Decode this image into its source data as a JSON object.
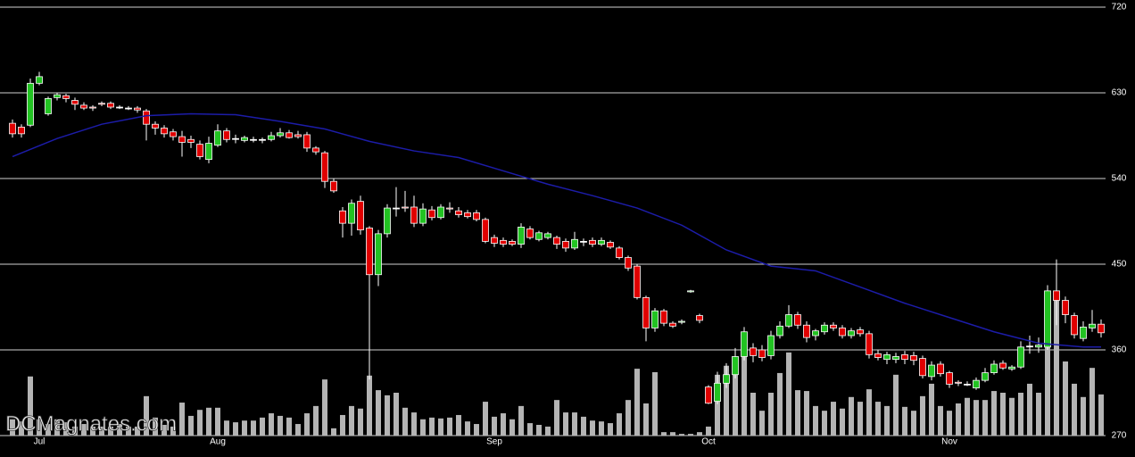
{
  "chart_data": {
    "type": "candlestick",
    "annotation": "DCMagnates.com",
    "categories": [
      null,
      null,
      null,
      "Jul",
      null,
      null,
      null,
      null,
      null,
      null,
      null,
      null,
      null,
      null,
      null,
      null,
      null,
      null,
      null,
      null,
      null,
      null,
      null,
      "Aug",
      null,
      null,
      null,
      null,
      null,
      null,
      null,
      null,
      null,
      null,
      null,
      null,
      null,
      null,
      null,
      null,
      null,
      null,
      null,
      null,
      null,
      null,
      null,
      null,
      null,
      null,
      null,
      null,
      null,
      null,
      "Sep",
      null,
      null,
      null,
      null,
      null,
      null,
      null,
      null,
      null,
      null,
      null,
      null,
      null,
      null,
      null,
      null,
      null,
      null,
      null,
      null,
      null,
      null,
      null,
      "Oct",
      null,
      null,
      null,
      null,
      null,
      null,
      null,
      null,
      null,
      null,
      null,
      null,
      null,
      null,
      null,
      null,
      null,
      null,
      null,
      null,
      null,
      null,
      null,
      null,
      null,
      null,
      "Nov",
      null,
      null,
      null,
      null,
      null,
      null,
      null,
      null,
      null,
      null,
      null,
      null,
      null,
      null,
      null,
      null,
      null
    ],
    "open": [
      598,
      594,
      596,
      640,
      608,
      625,
      627,
      622,
      617,
      615,
      619,
      619,
      615,
      614,
      614,
      611,
      597,
      593,
      589,
      584,
      581,
      576,
      560,
      575,
      590,
      582,
      580,
      581,
      581,
      581,
      585,
      588,
      586,
      586,
      572,
      567,
      537,
      506,
      493,
      516,
      488,
      439,
      482,
      509,
      510,
      510,
      493,
      507,
      499,
      509,
      506,
      504,
      504,
      497,
      478,
      475,
      474,
      471,
      487,
      476,
      478,
      478,
      474,
      467,
      474,
      475,
      471,
      473,
      467,
      457,
      448,
      415,
      383,
      401,
      388,
      389,
      421,
      396,
      321,
      306,
      325,
      334,
      353,
      362,
      360,
      354,
      375,
      385,
      397,
      386,
      375,
      379,
      386,
      383,
      375,
      381,
      377,
      356,
      350,
      350,
      355,
      354,
      351,
      332,
      345,
      336,
      326,
      324,
      320,
      328,
      336,
      346,
      340,
      342,
      364,
      363,
      363,
      422,
      412,
      396,
      372,
      383,
      387
    ],
    "high": [
      602,
      597,
      645,
      652,
      626,
      630,
      629,
      625,
      620,
      617,
      621,
      621,
      617,
      616,
      616,
      613,
      600,
      596,
      592,
      590,
      585,
      580,
      584,
      597,
      593,
      586,
      585,
      584,
      583,
      589,
      593,
      591,
      590,
      589,
      574,
      569,
      540,
      510,
      518,
      522,
      490,
      486,
      513,
      531,
      527,
      522,
      514,
      511,
      513,
      515,
      510,
      507,
      507,
      499,
      481,
      478,
      476,
      493,
      490,
      485,
      484,
      480,
      477,
      484,
      477,
      478,
      478,
      475,
      469,
      459,
      450,
      417,
      404,
      403,
      390,
      392,
      423,
      398,
      323,
      337,
      346,
      362,
      384,
      367,
      365,
      380,
      390,
      407,
      400,
      390,
      382,
      389,
      389,
      386,
      383,
      384,
      380,
      360,
      358,
      357,
      359,
      358,
      354,
      348,
      348,
      338,
      328,
      327,
      331,
      341,
      349,
      349,
      344,
      369,
      375,
      373,
      428,
      455,
      416,
      399,
      390,
      402,
      392
    ],
    "low": [
      583,
      583,
      594,
      638,
      606,
      622,
      620,
      612,
      612,
      611,
      616,
      613,
      613,
      612,
      609,
      580,
      586,
      583,
      580,
      563,
      572,
      560,
      556,
      573,
      578,
      577,
      578,
      578,
      577,
      579,
      583,
      582,
      582,
      568,
      565,
      530,
      525,
      478,
      480,
      481,
      329,
      427,
      478,
      500,
      505,
      489,
      490,
      496,
      497,
      504,
      499,
      498,
      495,
      472,
      468,
      468,
      469,
      467,
      476,
      474,
      476,
      466,
      463,
      465,
      469,
      468,
      469,
      466,
      455,
      443,
      413,
      369,
      379,
      385,
      383,
      387,
      420,
      388,
      303,
      303,
      320,
      330,
      349,
      347,
      348,
      350,
      372,
      383,
      382,
      368,
      370,
      376,
      380,
      372,
      372,
      374,
      351,
      349,
      345,
      346,
      345,
      344,
      330,
      328,
      332,
      320,
      322,
      322,
      318,
      326,
      334,
      339,
      338,
      340,
      356,
      357,
      360,
      386,
      388,
      372,
      369,
      379,
      373
    ],
    "close": [
      587,
      587,
      640,
      647,
      624,
      628,
      624,
      618,
      614,
      614,
      618,
      615,
      615,
      614,
      612,
      597,
      593,
      587,
      584,
      578,
      578,
      563,
      577,
      590,
      581,
      582,
      583,
      581,
      581,
      585,
      588,
      583,
      584,
      572,
      568,
      537,
      527,
      493,
      514,
      486,
      439,
      482,
      509,
      509,
      509,
      493,
      508,
      499,
      510,
      508,
      502,
      500,
      497,
      474,
      472,
      471,
      471,
      489,
      478,
      483,
      482,
      471,
      467,
      476,
      474,
      471,
      475,
      468,
      457,
      446,
      415,
      383,
      401,
      388,
      385,
      390,
      422,
      391,
      304,
      325,
      334,
      353,
      379,
      354,
      352,
      375,
      385,
      397,
      386,
      373,
      380,
      386,
      383,
      375,
      380,
      377,
      355,
      352,
      355,
      353,
      350,
      349,
      333,
      344,
      335,
      324,
      325,
      324,
      328,
      336,
      345,
      341,
      342,
      363,
      364,
      365,
      422,
      412,
      397,
      376,
      384,
      387,
      378
    ],
    "up_color": "#22c322",
    "down_color": "#e00000",
    "volume": {
      "axis": "y2",
      "color": "#b4b4b4",
      "values": [
        3.8,
        3.3,
        13.8,
        3.8,
        2.7,
        3.8,
        3.1,
        2.1,
        2.7,
        2.1,
        2.1,
        2.1,
        2.7,
        2.1,
        2.1,
        9.2,
        4.2,
        2.5,
        2.1,
        7.7,
        4.6,
        6.0,
        6.5,
        6.5,
        3.5,
        3.1,
        3.5,
        3.5,
        4.2,
        5.2,
        4.6,
        4.2,
        2.7,
        5.2,
        6.9,
        13.1,
        1.7,
        4.8,
        6.9,
        6.3,
        14.0,
        10.6,
        9.4,
        10.0,
        6.5,
        5.4,
        3.8,
        4.2,
        4.0,
        4.2,
        4.8,
        3.3,
        2.7,
        7.9,
        4.4,
        5.2,
        3.8,
        6.9,
        2.9,
        2.5,
        2.1,
        8.3,
        5.4,
        5.4,
        4.4,
        3.5,
        3.3,
        2.9,
        5.2,
        8.3,
        15.6,
        7.5,
        14.8,
        0.8,
        0.8,
        0.4,
        0.4,
        0.8,
        2.1,
        14.2,
        16.3,
        18.3,
        24.2,
        10,
        5.8,
        10,
        14.6,
        19.4,
        10.6,
        10.4,
        6.9,
        5.8,
        7.9,
        6.3,
        9.0,
        7.9,
        10.8,
        7.9,
        6.9,
        14.2,
        6.7,
        5.8,
        9.2,
        12.1,
        6.9,
        5.8,
        7.5,
        8.8,
        8.3,
        8.3,
        10.4,
        10,
        8.8,
        10,
        12.1,
        10,
        22.1,
        31.9,
        17.3,
        12.1,
        9.0,
        15.8,
        9.6
      ]
    },
    "moving_average": {
      "color": "#1c1ca8",
      "x": [
        0,
        5,
        10,
        15,
        20,
        25,
        30,
        35,
        40,
        45,
        50,
        55,
        60,
        65,
        70,
        75,
        80,
        85,
        90,
        95,
        100,
        105,
        110,
        115,
        120,
        122
      ],
      "values": [
        563,
        582,
        597,
        606,
        608,
        607,
        600,
        592,
        579,
        569,
        562,
        548,
        534,
        522,
        509,
        491,
        465,
        448,
        443,
        426,
        409,
        394,
        379,
        367,
        363,
        363
      ]
    },
    "ylim": [
      270,
      720
    ],
    "yticks": [
      270,
      360,
      450,
      540,
      630,
      720
    ],
    "y2lim": [
      0,
      100
    ],
    "grid": true
  }
}
